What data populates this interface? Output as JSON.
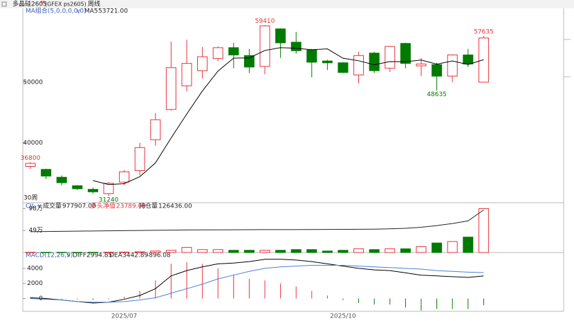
{
  "header": {
    "symbol": "多晶硅2605",
    "superscript": "M",
    "code": "(GFEX ps2605)",
    "period": "周线"
  },
  "chart_data": [
    {
      "type": "candlestick",
      "title": "MA组合(5,0,0,0,0,0)",
      "period_label": "30周",
      "categories": [
        null,
        null,
        null,
        null,
        null,
        null,
        "2025/07",
        null,
        null,
        null,
        null,
        null,
        null,
        null,
        null,
        null,
        null,
        null,
        null,
        null,
        "2025/10",
        null,
        null,
        null,
        null,
        null,
        null,
        null,
        null,
        null
      ],
      "open": [
        36100,
        35600,
        34300,
        32900,
        32300,
        31600,
        33500,
        35400,
        40500,
        45500,
        49400,
        51900,
        53900,
        55700,
        54400,
        52600,
        58800,
        56600,
        55300,
        53500,
        53200,
        51200,
        54800,
        52300,
        56400,
        52700,
        52900,
        51000,
        54500,
        50000
      ],
      "close": [
        36600,
        34500,
        33400,
        32400,
        31900,
        33300,
        35200,
        39200,
        43800,
        52400,
        53100,
        54200,
        55700,
        54500,
        52500,
        59300,
        56500,
        55200,
        53300,
        53200,
        51600,
        54400,
        51900,
        55900,
        53100,
        53000,
        51000,
        54500,
        53000,
        57300
      ],
      "high": [
        36800,
        35700,
        34600,
        33000,
        32600,
        33500,
        35500,
        40000,
        44900,
        56700,
        57000,
        55800,
        55900,
        56500,
        55500,
        59410,
        58900,
        58300,
        55500,
        53700,
        53300,
        55000,
        55000,
        56000,
        56500,
        54000,
        53200,
        54600,
        55500,
        57635
      ],
      "low": [
        35700,
        34000,
        33000,
        32200,
        31600,
        31240,
        33000,
        34600,
        39500,
        45300,
        48500,
        50600,
        53500,
        52300,
        51500,
        51300,
        54000,
        54700,
        50800,
        52000,
        51500,
        49800,
        51500,
        51700,
        52300,
        51000,
        48635,
        50000,
        52500,
        50000
      ],
      "up_color": "#e8313a",
      "down_color": "#007a00",
      "series": [
        {
          "name": "MA5",
          "color": "#000000",
          "last_label": "53721.00",
          "values": [
            null,
            null,
            null,
            null,
            33760,
            33100,
            33240,
            34400,
            36680,
            40780,
            44740,
            48540,
            51840,
            53980,
            54000,
            55240,
            55700,
            55600,
            55360,
            55500,
            53960,
            53540,
            52880,
            53400,
            53380,
            53660,
            52980,
            53500,
            52920,
            53721
          ]
        }
      ],
      "annotations": [
        36800,
        31240,
        59410,
        48635,
        57635
      ],
      "ylim": [
        30100,
        62200
      ],
      "yticks": [
        40000,
        50000
      ]
    },
    {
      "type": "volume",
      "series": [
        {
          "name": "成交量",
          "last_label": "977907.00",
          "values": [
            6000,
            5000,
            5000,
            4000,
            5000,
            8000,
            10000,
            15000,
            33000,
            49000,
            114000,
            65000,
            65000,
            49000,
            49000,
            49000,
            49000,
            65000,
            65000,
            33000,
            49000,
            82000,
            65000,
            82000,
            82000,
            130000,
            212000,
            245000,
            343000,
            977907
          ]
        },
        {
          "name": "持仓量",
          "last_label": "126436.00",
          "color": "#222222",
          "axis": "y2",
          "values": [
            62000,
            62500,
            63000,
            63500,
            64000,
            64500,
            65000,
            65500,
            66000,
            66500,
            67000,
            67200,
            67400,
            67600,
            67800,
            68000,
            68000,
            68200,
            68400,
            68600,
            68800,
            69000,
            69500,
            70500,
            72000,
            75000,
            80000,
            86000,
            94000,
            126436
          ]
        }
      ],
      "indicator": "CJL",
      "net_long": {
        "name": "多头净值",
        "label": "23789.00",
        "color": "#e8313a"
      },
      "ylim": [
        0,
        1110000
      ],
      "yticks": [
        {
          "value": 490000,
          "label": "49万"
        },
        {
          "value": 980000,
          "label": "98万"
        }
      ],
      "y2lim": [
        0,
        148000
      ]
    },
    {
      "type": "macd",
      "title": "MACD(12,26,9)",
      "series": [
        {
          "name": "DIFF",
          "color": "#000000",
          "values": [
            100,
            0,
            -200,
            -400,
            -600,
            -500,
            -100,
            400,
            1300,
            3000,
            3700,
            4200,
            4600,
            4700,
            4900,
            5200,
            5200,
            5100,
            4900,
            4600,
            4300,
            4000,
            3800,
            3700,
            3400,
            3100,
            3000,
            2900,
            2800,
            2994.85
          ]
        },
        {
          "name": "DEA",
          "color": "#4a7fd9",
          "values": [
            0,
            -100,
            -200,
            -400,
            -500,
            -500,
            -400,
            -200,
            100,
            700,
            1300,
            1900,
            2600,
            3100,
            3600,
            4000,
            4200,
            4300,
            4400,
            4400,
            4400,
            4300,
            4200,
            4100,
            4000,
            3900,
            3700,
            3600,
            3500,
            3442.89
          ]
        }
      ],
      "histogram": [
        200,
        -100,
        -100,
        -100,
        -200,
        -100,
        200,
        1000,
        2400,
        4600,
        4800,
        4600,
        4000,
        3200,
        2600,
        2400,
        2000,
        1600,
        1000,
        400,
        -200,
        -600,
        -800,
        -800,
        -1200,
        -1600,
        -1400,
        -1400,
        -1400,
        -896.08
      ],
      "ylim": [
        -1700,
        6100
      ],
      "yticks": [
        0,
        2000,
        4000
      ]
    }
  ]
}
